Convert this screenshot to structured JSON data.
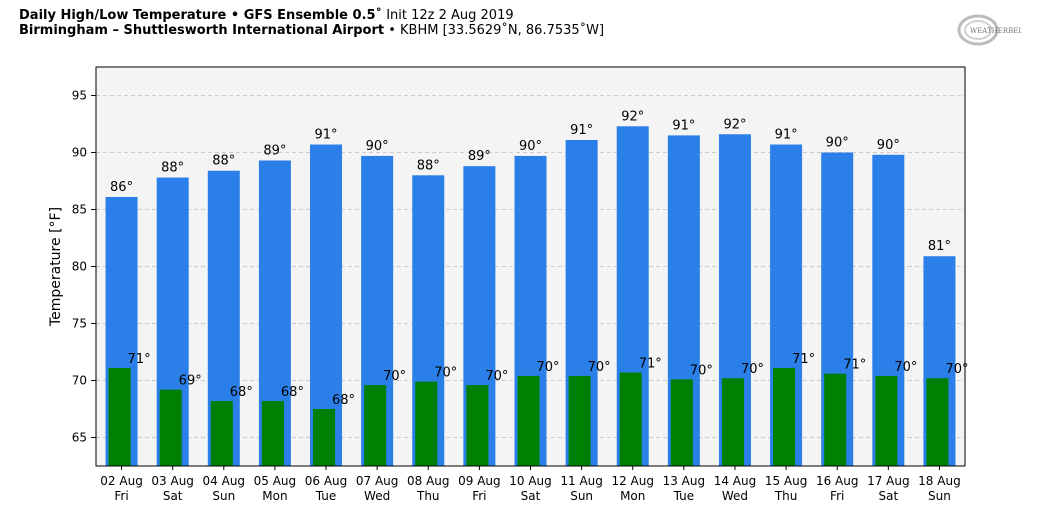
{
  "title": {
    "line1_bold": "Daily High/Low Temperature • GFS Ensemble 0.5˚",
    "line1_rest": " Init 12z 2 Aug 2019",
    "line2_bold": "Birmingham – Shuttlesworth International Airport",
    "line2_rest": " • KBHM [33.5629˚N, 86.7535˚W]"
  },
  "logo": {
    "text": "WEATHERBELL",
    "icon": "weatherbell-logo"
  },
  "colors": {
    "high_bar": "#2a7fe8",
    "low_bar": "#008000",
    "plot_bg": "#f4f4f4",
    "grid": "#cccccc"
  },
  "chart_data": {
    "type": "bar",
    "ylabel": "Temperature [°F]",
    "ylim": [
      62.5,
      97.5
    ],
    "yticks": [
      65,
      70,
      75,
      80,
      85,
      90,
      95
    ],
    "grid": true,
    "categories": [
      {
        "date": "02 Aug",
        "day": "Fri"
      },
      {
        "date": "03 Aug",
        "day": "Sat"
      },
      {
        "date": "04 Aug",
        "day": "Sun"
      },
      {
        "date": "05 Aug",
        "day": "Mon"
      },
      {
        "date": "06 Aug",
        "day": "Tue"
      },
      {
        "date": "07 Aug",
        "day": "Wed"
      },
      {
        "date": "08 Aug",
        "day": "Thu"
      },
      {
        "date": "09 Aug",
        "day": "Fri"
      },
      {
        "date": "10 Aug",
        "day": "Sat"
      },
      {
        "date": "11 Aug",
        "day": "Sun"
      },
      {
        "date": "12 Aug",
        "day": "Mon"
      },
      {
        "date": "13 Aug",
        "day": "Tue"
      },
      {
        "date": "14 Aug",
        "day": "Wed"
      },
      {
        "date": "15 Aug",
        "day": "Thu"
      },
      {
        "date": "16 Aug",
        "day": "Fri"
      },
      {
        "date": "17 Aug",
        "day": "Sat"
      },
      {
        "date": "18 Aug",
        "day": "Sun"
      }
    ],
    "series": [
      {
        "values": [
          86.1,
          87.8,
          88.4,
          89.3,
          90.7,
          89.7,
          88.0,
          88.8,
          89.7,
          91.1,
          92.3,
          91.5,
          91.6,
          90.7,
          90.0,
          89.8,
          80.9
        ],
        "labels": [
          "86°",
          "88°",
          "88°",
          "89°",
          "91°",
          "90°",
          "88°",
          "89°",
          "90°",
          "91°",
          "92°",
          "91°",
          "92°",
          "91°",
          "90°",
          "90°",
          "81°"
        ]
      },
      {
        "values": [
          71.1,
          69.2,
          68.2,
          68.2,
          67.5,
          69.6,
          69.9,
          69.6,
          70.4,
          70.4,
          70.7,
          70.1,
          70.2,
          71.1,
          70.6,
          70.4,
          70.2
        ],
        "labels": [
          "71°",
          "69°",
          "68°",
          "68°",
          "68°",
          "70°",
          "70°",
          "70°",
          "70°",
          "70°",
          "71°",
          "70°",
          "70°",
          "71°",
          "71°",
          "70°",
          "70°"
        ]
      }
    ]
  }
}
